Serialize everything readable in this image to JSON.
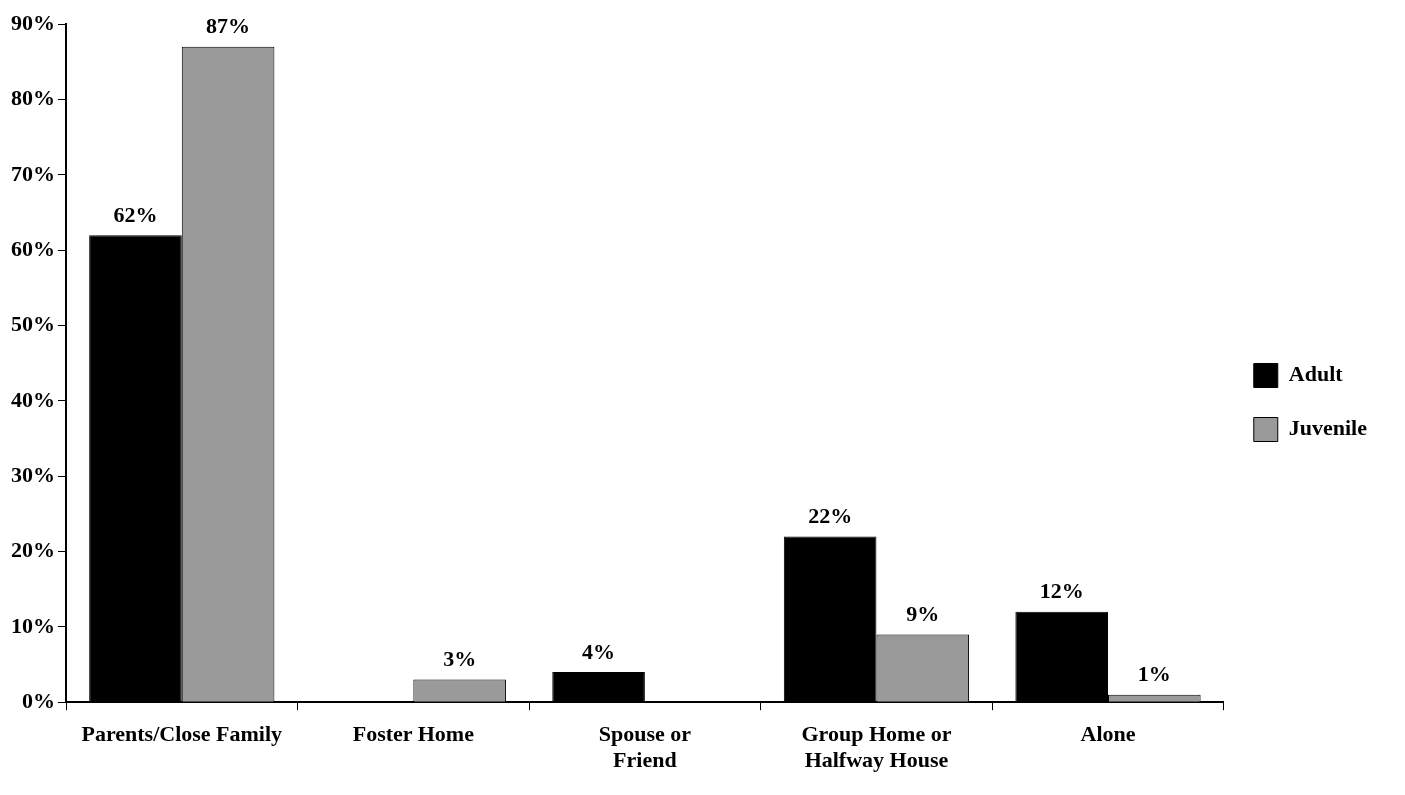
{
  "chart_data": {
    "type": "bar",
    "categories": [
      "Parents/Close Family",
      "Foster Home",
      "Spouse or Friend",
      "Group Home or Halfway House",
      "Alone"
    ],
    "series": [
      {
        "name": "Adult",
        "color": "#000000",
        "values": [
          62,
          null,
          4,
          22,
          12
        ],
        "value_labels": [
          "62%",
          null,
          "4%",
          "22%",
          "12%"
        ]
      },
      {
        "name": "Juvenile",
        "color": "#9a9a9a",
        "values": [
          87,
          3,
          null,
          9,
          1
        ],
        "value_labels": [
          "87%",
          "3%",
          null,
          "9%",
          "1%"
        ]
      }
    ],
    "ylim": [
      0,
      90
    ],
    "yticks": [
      {
        "value": 0,
        "label": "0%"
      },
      {
        "value": 10,
        "label": "10%"
      },
      {
        "value": 20,
        "label": "20%"
      },
      {
        "value": 30,
        "label": "30%"
      },
      {
        "value": 40,
        "label": "40%"
      },
      {
        "value": 50,
        "label": "50%"
      },
      {
        "value": 60,
        "label": "60%"
      },
      {
        "value": 70,
        "label": "70%"
      },
      {
        "value": 80,
        "label": "80%"
      },
      {
        "value": 90,
        "label": "90%"
      }
    ],
    "grid": false,
    "legend": "right"
  }
}
